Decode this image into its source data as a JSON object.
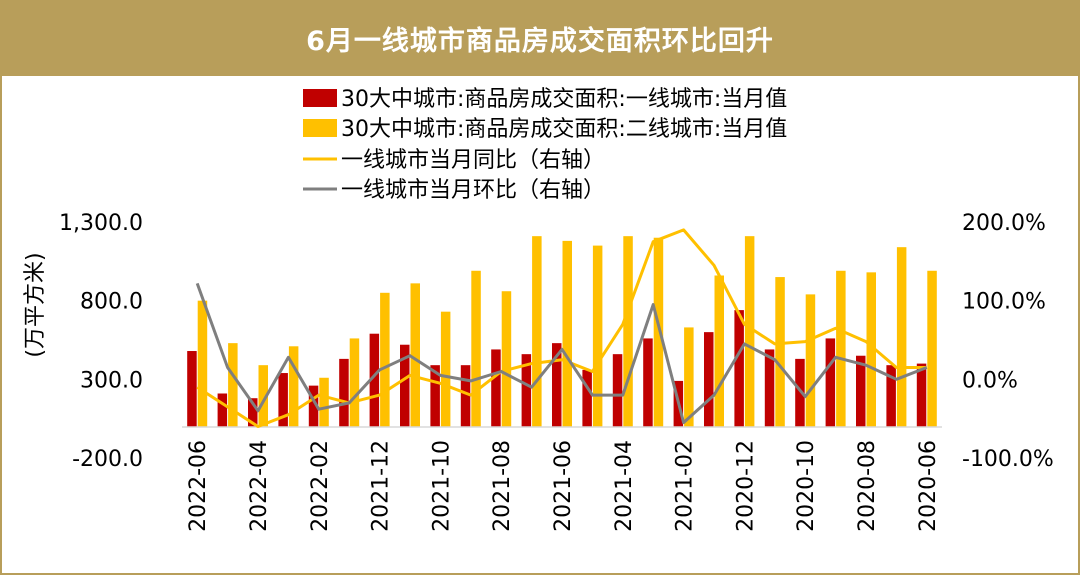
{
  "chart_data": {
    "type": "bar",
    "title": "6月一线城市商品房成交面积环比回升",
    "ylabel": "(万平方米)",
    "y2label": "",
    "xlabel": "",
    "ylim": [
      -200,
      1300
    ],
    "y_ticks": [
      "1,300.0",
      "800.0",
      "300.0",
      "-200.0"
    ],
    "y2lim": [
      -100,
      200
    ],
    "y2_ticks": [
      "200.0%",
      "100.0%",
      "0.0%",
      "-100.0%"
    ],
    "x_tick_labels": [
      "2022-06",
      "2022-04",
      "2022-02",
      "2021-12",
      "2021-10",
      "2021-08",
      "2021-06",
      "2021-04",
      "2021-02",
      "2020-12",
      "2020-10",
      "2020-08",
      "2020-06"
    ],
    "legend_position": "top",
    "grid": false,
    "colors": {
      "tier1": "#c00000",
      "tier2": "#ffc000",
      "yoy": "#ffc000",
      "mom": "#7f7f7f",
      "frame": "#b89e5a"
    },
    "categories": [
      "2022-06",
      "2022-05",
      "2022-04",
      "2022-03",
      "2022-02",
      "2022-01",
      "2021-12",
      "2021-11",
      "2021-10",
      "2021-09",
      "2021-08",
      "2021-07",
      "2021-06",
      "2021-05",
      "2021-04",
      "2021-03",
      "2021-02",
      "2021-01",
      "2020-12",
      "2020-11",
      "2020-10",
      "2020-09",
      "2020-08",
      "2020-07",
      "2020-06"
    ],
    "series": [
      {
        "name": "30大中城市:商品房成交面积:一线城市:当月值",
        "kind": "bar",
        "axis": "left",
        "values": [
          480,
          210,
          180,
          340,
          260,
          430,
          590,
          520,
          390,
          390,
          490,
          460,
          530,
          360,
          460,
          560,
          290,
          600,
          740,
          490,
          430,
          560,
          450,
          390,
          400
        ]
      },
      {
        "name": "30大中城市:商品房成交面积:二线城市:当月值",
        "kind": "bar",
        "axis": "left",
        "values": [
          800,
          530,
          390,
          510,
          310,
          560,
          850,
          910,
          730,
          990,
          860,
          1210,
          1180,
          1150,
          1210,
          1200,
          630,
          960,
          1210,
          950,
          840,
          990,
          980,
          1140,
          990
        ]
      },
      {
        "name": "一线城市当月同比（右轴）",
        "kind": "line",
        "axis": "right",
        "values": [
          -10,
          -35,
          -60,
          -45,
          -20,
          -30,
          -20,
          5,
          -5,
          -20,
          10,
          20,
          25,
          10,
          70,
          175,
          190,
          145,
          70,
          45,
          48,
          65,
          48,
          15,
          15
        ]
      },
      {
        "name": "一线城市当月环比（右轴）",
        "kind": "line",
        "axis": "right",
        "values": [
          122,
          15,
          -40,
          28,
          -38,
          -30,
          12,
          30,
          5,
          -2,
          10,
          -10,
          38,
          -20,
          -20,
          95,
          -55,
          -20,
          45,
          25,
          -22,
          28,
          18,
          0,
          15
        ]
      }
    ]
  }
}
